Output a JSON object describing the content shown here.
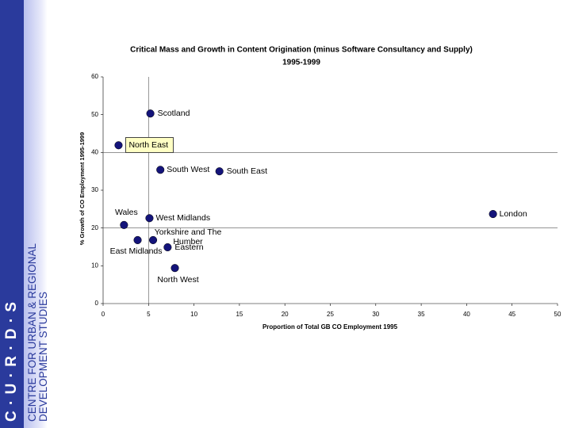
{
  "sidebar": {
    "logo": "C · U · R · D · S",
    "lines": [
      "CENTRE FOR URBAN & REGIONAL",
      "DEVELOPMENT STUDIES"
    ]
  },
  "chart_data": {
    "type": "scatter",
    "title": [
      "Critical Mass and Growth in Content Origination (minus Software Consultancy and Supply)",
      "1995-1999"
    ],
    "x_label": "Proportion of Total GB CO Employment 1995",
    "y_label": "% Growth of CO Employment 1995-1999",
    "labels": [
      "Scotland",
      "North East",
      "South West",
      "South East",
      "London",
      "Wales",
      "West Midlands",
      "Yorkshire and The Humber",
      "East Midlands",
      "Eastern",
      "North West"
    ],
    "x": [
      5.2,
      1.7,
      6.3,
      12.8,
      42.9,
      2.3,
      5.1,
      5.5,
      3.8,
      7.1,
      7.9
    ],
    "y": [
      50.3,
      41.9,
      35.4,
      35.0,
      23.7,
      20.8,
      22.6,
      16.8,
      16.8,
      14.9,
      9.4
    ],
    "color": "#14147a",
    "highlight": 1,
    "reference_lines": {
      "x": [
        5
      ],
      "y": [
        20,
        40
      ]
    },
    "xlim": [
      0,
      50
    ],
    "xticks": [
      0,
      5,
      10,
      15,
      20,
      25,
      30,
      35,
      40,
      45,
      50
    ],
    "ylim": [
      0,
      60
    ],
    "yticks": [
      0,
      10,
      20,
      30,
      40,
      50,
      60
    ]
  }
}
